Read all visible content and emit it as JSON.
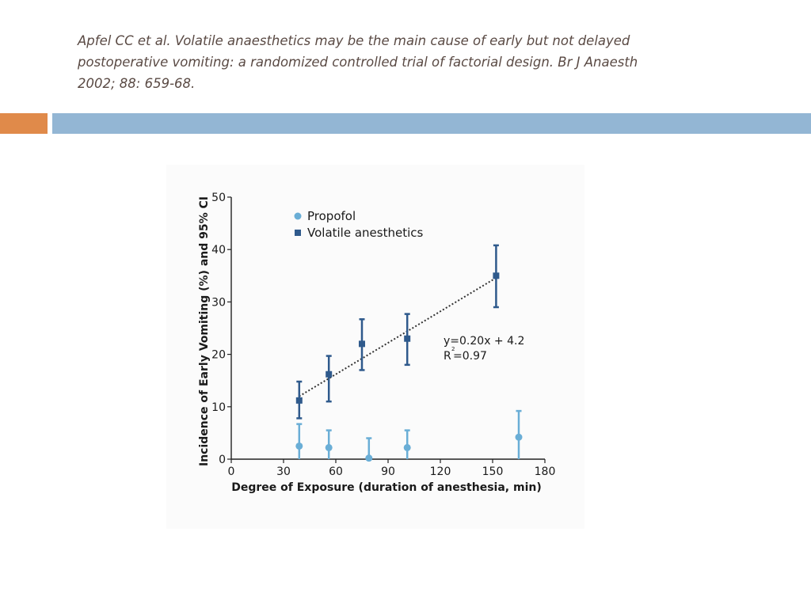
{
  "citation": {
    "lines": [
      "Apfel CC et al. Volatile anaesthetics may be the main cause of early but not delayed",
      "postoperative vomiting: a randomized controlled trial of factorial design. Br J Anaesth",
      "2002; 88: 659-68."
    ]
  },
  "colors": {
    "accent_orange": "#e08a4a",
    "accent_blue": "#93b6d4",
    "propofol": "#6aaed6",
    "volatile": "#2f5a8c"
  },
  "chart_data": {
    "type": "scatter",
    "xlabel": "Degree of Exposure (duration of anesthesia, min)",
    "ylabel": "Incidence of Early Vomiting (%) and 95% CI",
    "xlim": [
      0,
      180
    ],
    "ylim": [
      0,
      50
    ],
    "x_ticks": [
      "0",
      "30",
      "60",
      "90",
      "120",
      "150",
      "180"
    ],
    "y_ticks": [
      "0",
      "10",
      "20",
      "30",
      "40",
      "50"
    ],
    "grid": false,
    "legend_position": "top-left",
    "series": [
      {
        "name": "Propofol",
        "marker": "circle",
        "points": [
          {
            "x": 39,
            "y": 2.5,
            "ci_low": 0,
            "ci_high": 6.7
          },
          {
            "x": 56,
            "y": 2.2,
            "ci_low": 0,
            "ci_high": 5.5
          },
          {
            "x": 79,
            "y": 0.2,
            "ci_low": 0,
            "ci_high": 4.0
          },
          {
            "x": 101,
            "y": 2.2,
            "ci_low": 0,
            "ci_high": 5.5
          },
          {
            "x": 165,
            "y": 4.2,
            "ci_low": 0,
            "ci_high": 9.2
          }
        ]
      },
      {
        "name": "Volatile anesthetics",
        "marker": "square",
        "points": [
          {
            "x": 39,
            "y": 11.2,
            "ci_low": 7.8,
            "ci_high": 14.8
          },
          {
            "x": 56,
            "y": 16.2,
            "ci_low": 11.0,
            "ci_high": 19.7
          },
          {
            "x": 75,
            "y": 22.0,
            "ci_low": 17.0,
            "ci_high": 26.7
          },
          {
            "x": 101,
            "y": 23.0,
            "ci_low": 18.0,
            "ci_high": 27.7
          },
          {
            "x": 152,
            "y": 35.0,
            "ci_low": 29.0,
            "ci_high": 40.8
          }
        ]
      }
    ],
    "trendline": {
      "series": "Volatile anesthetics",
      "slope": 0.2,
      "intercept": 4.2,
      "x_range": [
        39,
        152
      ],
      "style": "dotted",
      "equation": "y=0.20x + 4.2",
      "r2_label": "R",
      "r2_sup": "2",
      "r2_value": "=0.97"
    }
  }
}
